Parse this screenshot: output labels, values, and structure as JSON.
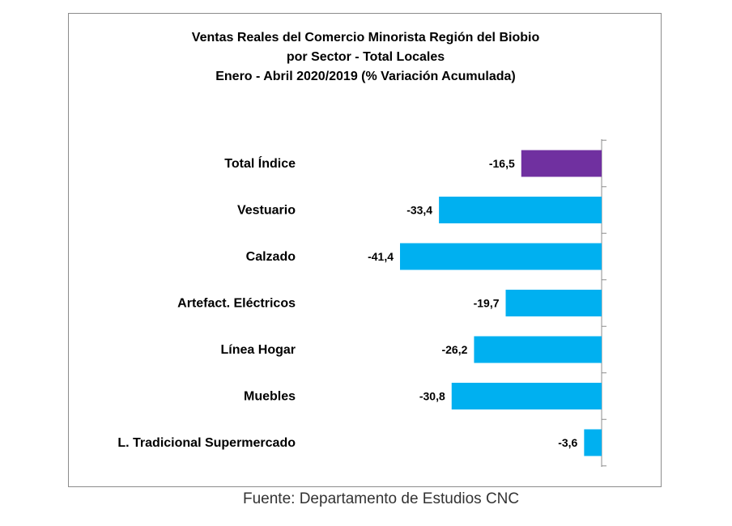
{
  "chart_data": {
    "type": "bar",
    "orientation": "horizontal",
    "title_lines": [
      "Ventas Reales del Comercio Minorista Región del Biobio",
      "por Sector - Total Locales",
      "Enero - Abril  2020/2019 (% Variación Acumulada)"
    ],
    "categories": [
      "Total Índice",
      "Vestuario",
      "Calzado",
      "Artefact. Eléctricos",
      "Línea Hogar",
      "Muebles",
      "L. Tradicional Supermercado"
    ],
    "values": [
      -16.5,
      -33.4,
      -41.4,
      -19.7,
      -26.2,
      -30.8,
      -3.6
    ],
    "value_labels": [
      "-16,5",
      "-33,4",
      "-41,4",
      "-19,7",
      "-26,2",
      "-30,8",
      "-3,6"
    ],
    "colors": {
      "highlight": "#7030a0",
      "default": "#00b0f0"
    },
    "highlight_index": 0,
    "xlim": [
      -41.4,
      0
    ],
    "grid": false,
    "legend": "none"
  },
  "source": "Fuente: Departamento de Estudios CNC"
}
